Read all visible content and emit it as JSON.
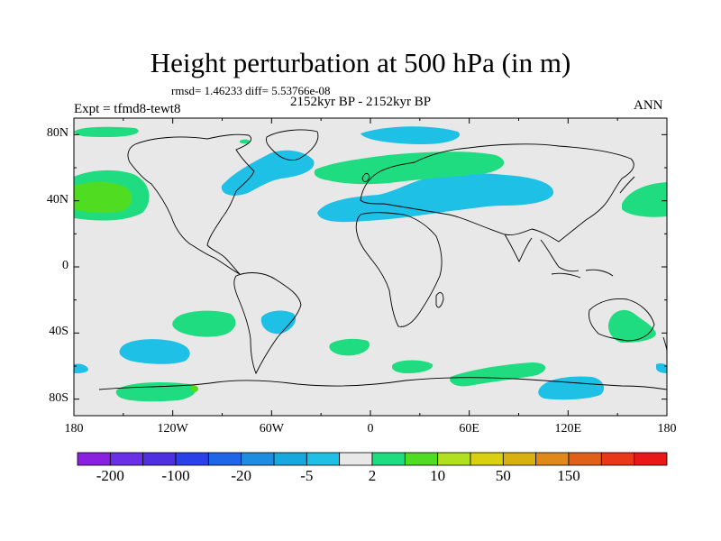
{
  "title": "Height perturbation at 500 hPa (in m)",
  "stats": "rmsd= 1.46233 diff= 5.53766e-08",
  "period": "2152kyr BP - 2152kyr BP",
  "experiment": "Expt = tfmd8-tewt8",
  "season": "ANN",
  "colors": {
    "land_background": "#e8e8e8",
    "coast": "#000000",
    "cyan_neg": "#1ec0e6",
    "green_pos": "#20dc80",
    "lime_pos": "#50dc20"
  },
  "map": {
    "lat_labels": [
      "80N",
      "40N",
      "0",
      "40S",
      "80S"
    ],
    "lat_values": [
      80,
      40,
      0,
      -40,
      -80
    ],
    "lon_labels": [
      "180",
      "120W",
      "60W",
      "0",
      "60E",
      "120E",
      "180"
    ],
    "lon_values": [
      -180,
      -120,
      -60,
      0,
      60,
      120,
      180
    ]
  },
  "colorbar": {
    "colors": [
      "#8a20e0",
      "#6a30e8",
      "#4e30e0",
      "#2a40e8",
      "#1d66e8",
      "#1e8ce0",
      "#18a8e0",
      "#1ec0e6",
      "#e8e8e8",
      "#20dc80",
      "#50dc20",
      "#b0e020",
      "#d8d010",
      "#d8b010",
      "#e08818",
      "#e06018",
      "#e83818",
      "#e81818"
    ],
    "label_values": [
      "-200",
      "-100",
      "-20",
      "-5",
      "2",
      "10",
      "50",
      "150"
    ]
  }
}
